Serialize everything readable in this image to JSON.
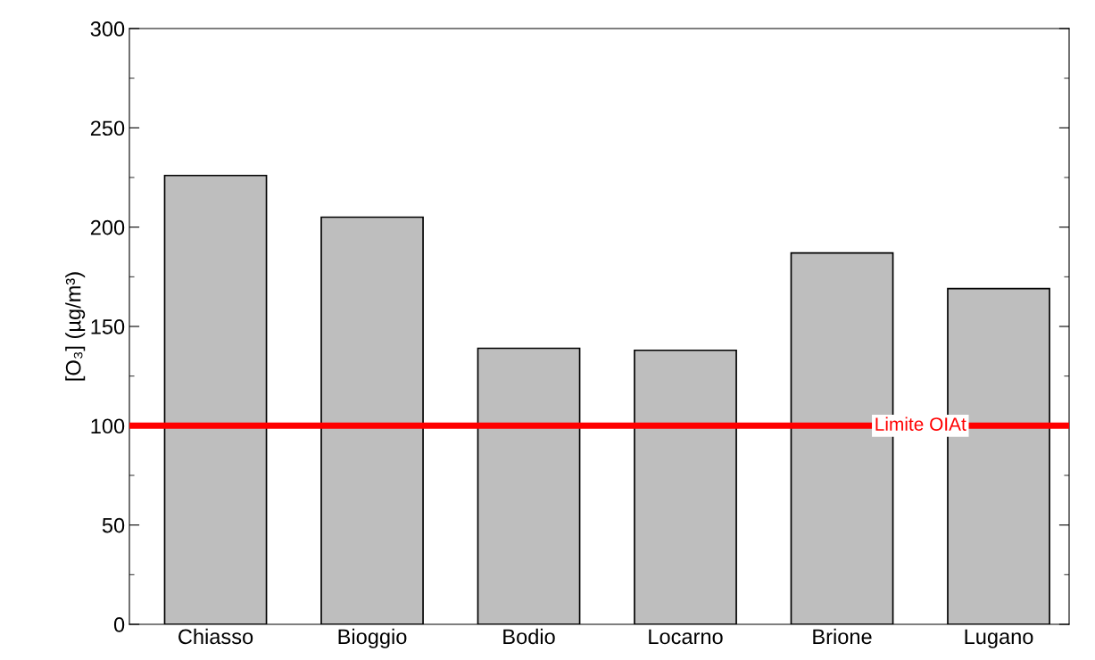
{
  "chart_data": {
    "type": "bar",
    "ylabel": "[O₃] (µg/m³)",
    "categories": [
      "Chiasso",
      "Bioggio",
      "Bodio",
      "Locarno",
      "Brione",
      "Lugano"
    ],
    "values": [
      226,
      205,
      139,
      138,
      187,
      169
    ],
    "color": "#bebebe",
    "ylim": [
      0,
      300
    ],
    "yticks": [
      0,
      50,
      100,
      150,
      200,
      250,
      300
    ],
    "grid": false,
    "legend": false,
    "ref_lines": [
      {
        "axis": "y",
        "value": 100,
        "label": "Limite OIAt",
        "color": "#ff0000"
      }
    ]
  }
}
